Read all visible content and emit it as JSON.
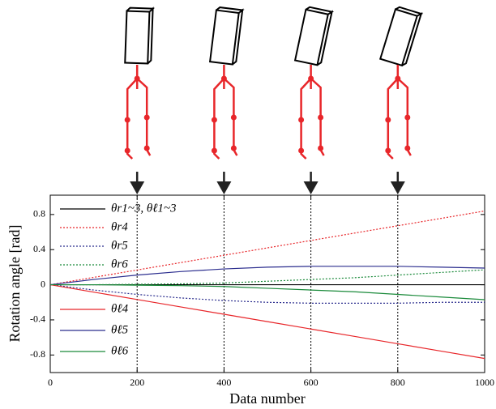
{
  "chart_data": {
    "type": "line",
    "xlabel": "Data number",
    "ylabel": "Rotation angle [rad]",
    "x": [
      0,
      100,
      200,
      300,
      400,
      500,
      600,
      700,
      800,
      900,
      1000
    ],
    "series": [
      {
        "name": "θr1~3, θℓ1~3",
        "color": "#000000",
        "dash": false,
        "values": [
          0,
          0,
          0,
          0,
          0,
          0,
          0,
          0,
          0,
          0,
          0
        ]
      },
      {
        "name": "θr4",
        "color": "#e8262a",
        "dash": true,
        "values": [
          0,
          0.084,
          0.168,
          0.252,
          0.336,
          0.42,
          0.504,
          0.588,
          0.672,
          0.756,
          0.84
        ]
      },
      {
        "name": "θr5",
        "color": "#2b2d8e",
        "dash": true,
        "values": [
          0,
          -0.06,
          -0.11,
          -0.15,
          -0.18,
          -0.2,
          -0.21,
          -0.21,
          -0.21,
          -0.2,
          -0.2
        ]
      },
      {
        "name": "θr6",
        "color": "#1a8a3a",
        "dash": true,
        "values": [
          0,
          0,
          0.005,
          0.01,
          0.02,
          0.04,
          0.06,
          0.08,
          0.11,
          0.14,
          0.17
        ]
      },
      {
        "name": "θℓ4",
        "color": "#e8262a",
        "dash": false,
        "values": [
          0,
          -0.084,
          -0.168,
          -0.252,
          -0.336,
          -0.42,
          -0.504,
          -0.588,
          -0.672,
          -0.756,
          -0.84
        ]
      },
      {
        "name": "θℓ5",
        "color": "#2b2d8e",
        "dash": false,
        "values": [
          0,
          0.06,
          0.11,
          0.15,
          0.18,
          0.2,
          0.21,
          0.21,
          0.21,
          0.2,
          0.19
        ]
      },
      {
        "name": "θℓ6",
        "color": "#1a8a3a",
        "dash": false,
        "values": [
          0,
          0,
          -0.005,
          -0.01,
          -0.02,
          -0.04,
          -0.06,
          -0.08,
          -0.11,
          -0.14,
          -0.17
        ]
      }
    ],
    "markers": [
      200,
      400,
      600,
      800
    ],
    "xlim": [
      0,
      1000
    ],
    "xticks": [
      0,
      200,
      400,
      600,
      800,
      1000
    ],
    "ylim": [
      -1.0,
      1.02
    ],
    "yticks": [
      -0.8,
      -0.4,
      0,
      0.4,
      0.8
    ]
  }
}
